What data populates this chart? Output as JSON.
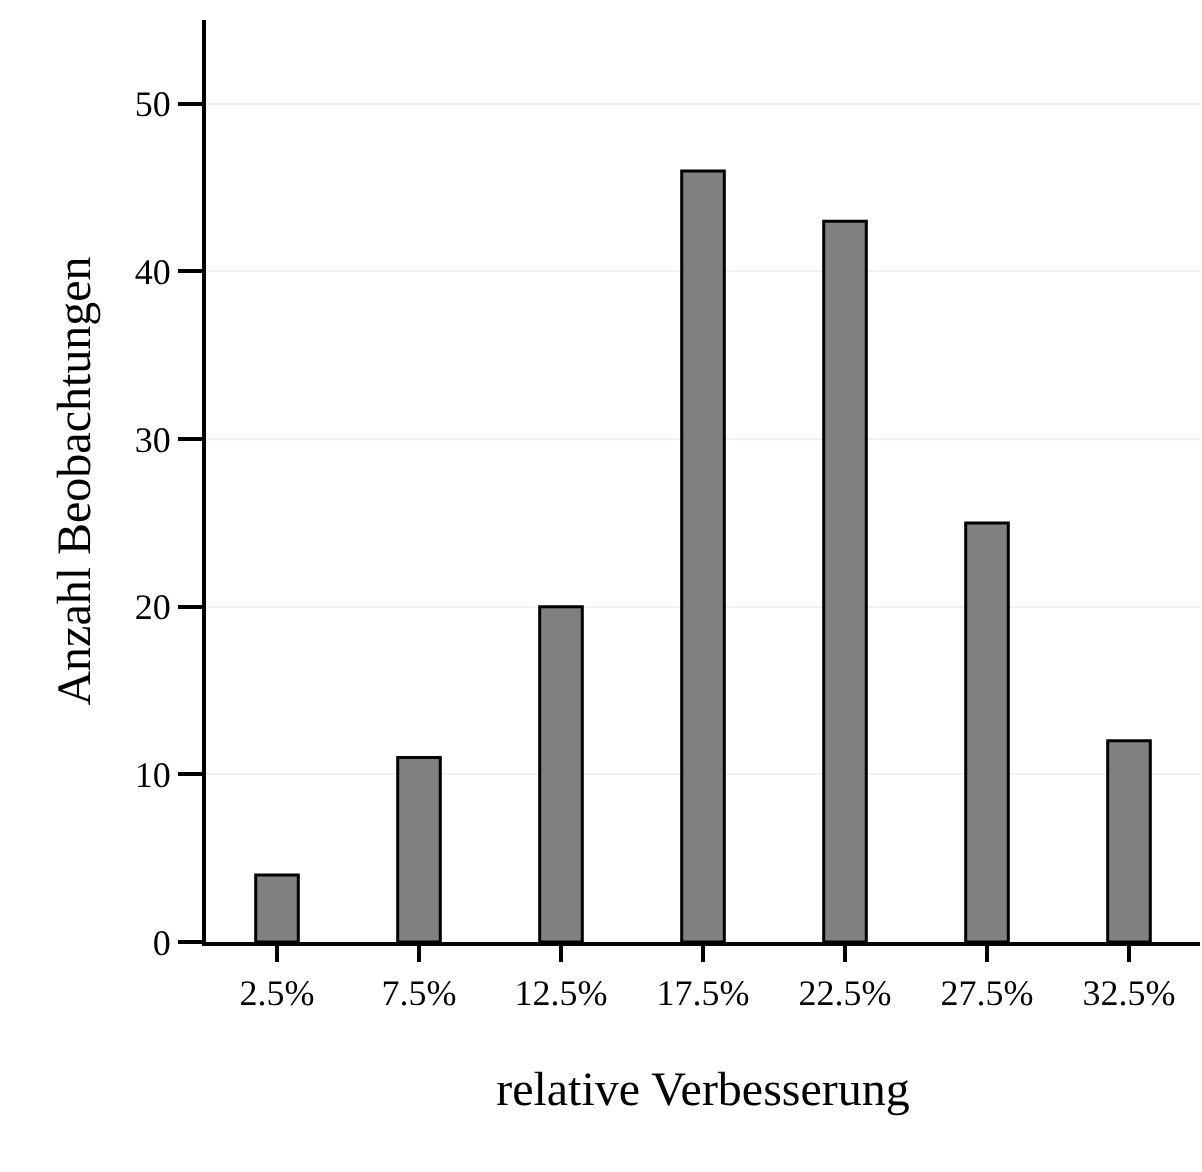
{
  "chart_data": {
    "type": "bar",
    "xlabel": "relative Verbesserung",
    "ylabel": "Anzahl Beobachtungen",
    "categories": [
      "2.5%",
      "7.5%",
      "12.5%",
      "17.5%",
      "22.5%",
      "27.5%",
      "32.5%"
    ],
    "values": [
      4,
      11,
      20,
      46,
      43,
      25,
      12
    ],
    "color": "#808080",
    "ylim": [
      0,
      55
    ],
    "yticks": [
      0,
      10,
      20,
      30,
      40,
      50
    ],
    "grid": "y"
  }
}
